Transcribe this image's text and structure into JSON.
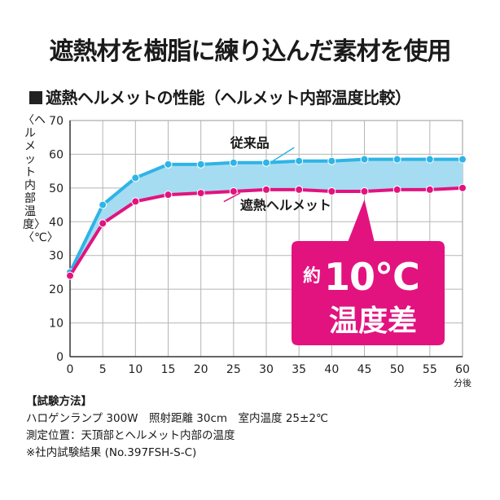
{
  "headline": "遮熱材を樹脂に練り込んだ素材を使用",
  "subheading": "遮熱ヘルメットの性能（ヘルメット内部温度比較）",
  "chart_data": {
    "type": "line",
    "x": [
      0,
      5,
      10,
      15,
      20,
      25,
      30,
      35,
      40,
      45,
      50,
      55,
      60
    ],
    "xlabel": "分後",
    "ylabel": "〈ヘルメット内部温度〉〈℃〉",
    "xlim": [
      0,
      60
    ],
    "ylim": [
      0,
      70
    ],
    "yticks": [
      0,
      10,
      20,
      30,
      40,
      50,
      60,
      70
    ],
    "grid": true,
    "series": [
      {
        "name": "従来品",
        "color": "#2eb4e6",
        "values": [
          25,
          45,
          53,
          57,
          57,
          57.5,
          57.5,
          58,
          58,
          58.5,
          58.5,
          58.5,
          58.5
        ]
      },
      {
        "name": "遮熱ヘルメット",
        "color": "#e2137f",
        "values": [
          24,
          39.5,
          46,
          48,
          48.5,
          49,
          49.5,
          49.5,
          49,
          49,
          49.5,
          49.5,
          50
        ]
      }
    ],
    "annotation": {
      "prefix": "約",
      "value": "10°C",
      "line2": "温度差",
      "color": "#e2137f"
    }
  },
  "notes": {
    "heading": "【試験方法】",
    "lines": [
      "ハロゲンランプ 300W　照射距離 30cm　室内温度 25±2℃",
      "測定位置：天頂部とヘルメット内部の温度",
      "※社内試験結果 (No.397FSH-S-C)"
    ]
  }
}
